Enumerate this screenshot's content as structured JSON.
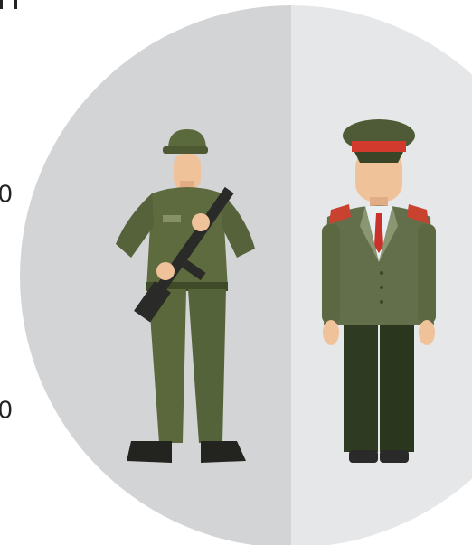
{
  "labels": [
    "0",
    "0"
  ]
}
